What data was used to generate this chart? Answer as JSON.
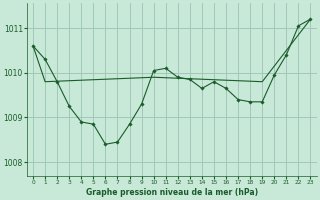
{
  "title": "Graphe pression niveau de la mer (hPa)",
  "background_color": "#c8e8d8",
  "grid_color": "#a0c8b8",
  "line_color": "#1a5c2a",
  "xlim": [
    -0.5,
    23.5
  ],
  "ylim": [
    1007.7,
    1011.55
  ],
  "yticks": [
    1008,
    1009,
    1010,
    1011
  ],
  "xticks": [
    0,
    1,
    2,
    3,
    4,
    5,
    6,
    7,
    8,
    9,
    10,
    11,
    12,
    13,
    14,
    15,
    16,
    17,
    18,
    19,
    20,
    21,
    22,
    23
  ],
  "line1_x": [
    0,
    1,
    2,
    3,
    4,
    5,
    6,
    7,
    8,
    9,
    10,
    11,
    12,
    13,
    14,
    15,
    16,
    17,
    18,
    19,
    20,
    21,
    22,
    23
  ],
  "line1_y": [
    1010.6,
    1010.3,
    1009.8,
    1009.25,
    1008.9,
    1008.85,
    1008.4,
    1008.45,
    1008.85,
    1009.3,
    1010.05,
    1010.1,
    1009.9,
    1009.85,
    1009.65,
    1009.8,
    1009.65,
    1009.4,
    1009.35,
    1009.35,
    1009.95,
    1010.4,
    1011.05,
    1011.2
  ],
  "line2_x": [
    0,
    1,
    10,
    19,
    23
  ],
  "line2_y": [
    1010.6,
    1009.8,
    1009.9,
    1009.8,
    1011.2
  ]
}
